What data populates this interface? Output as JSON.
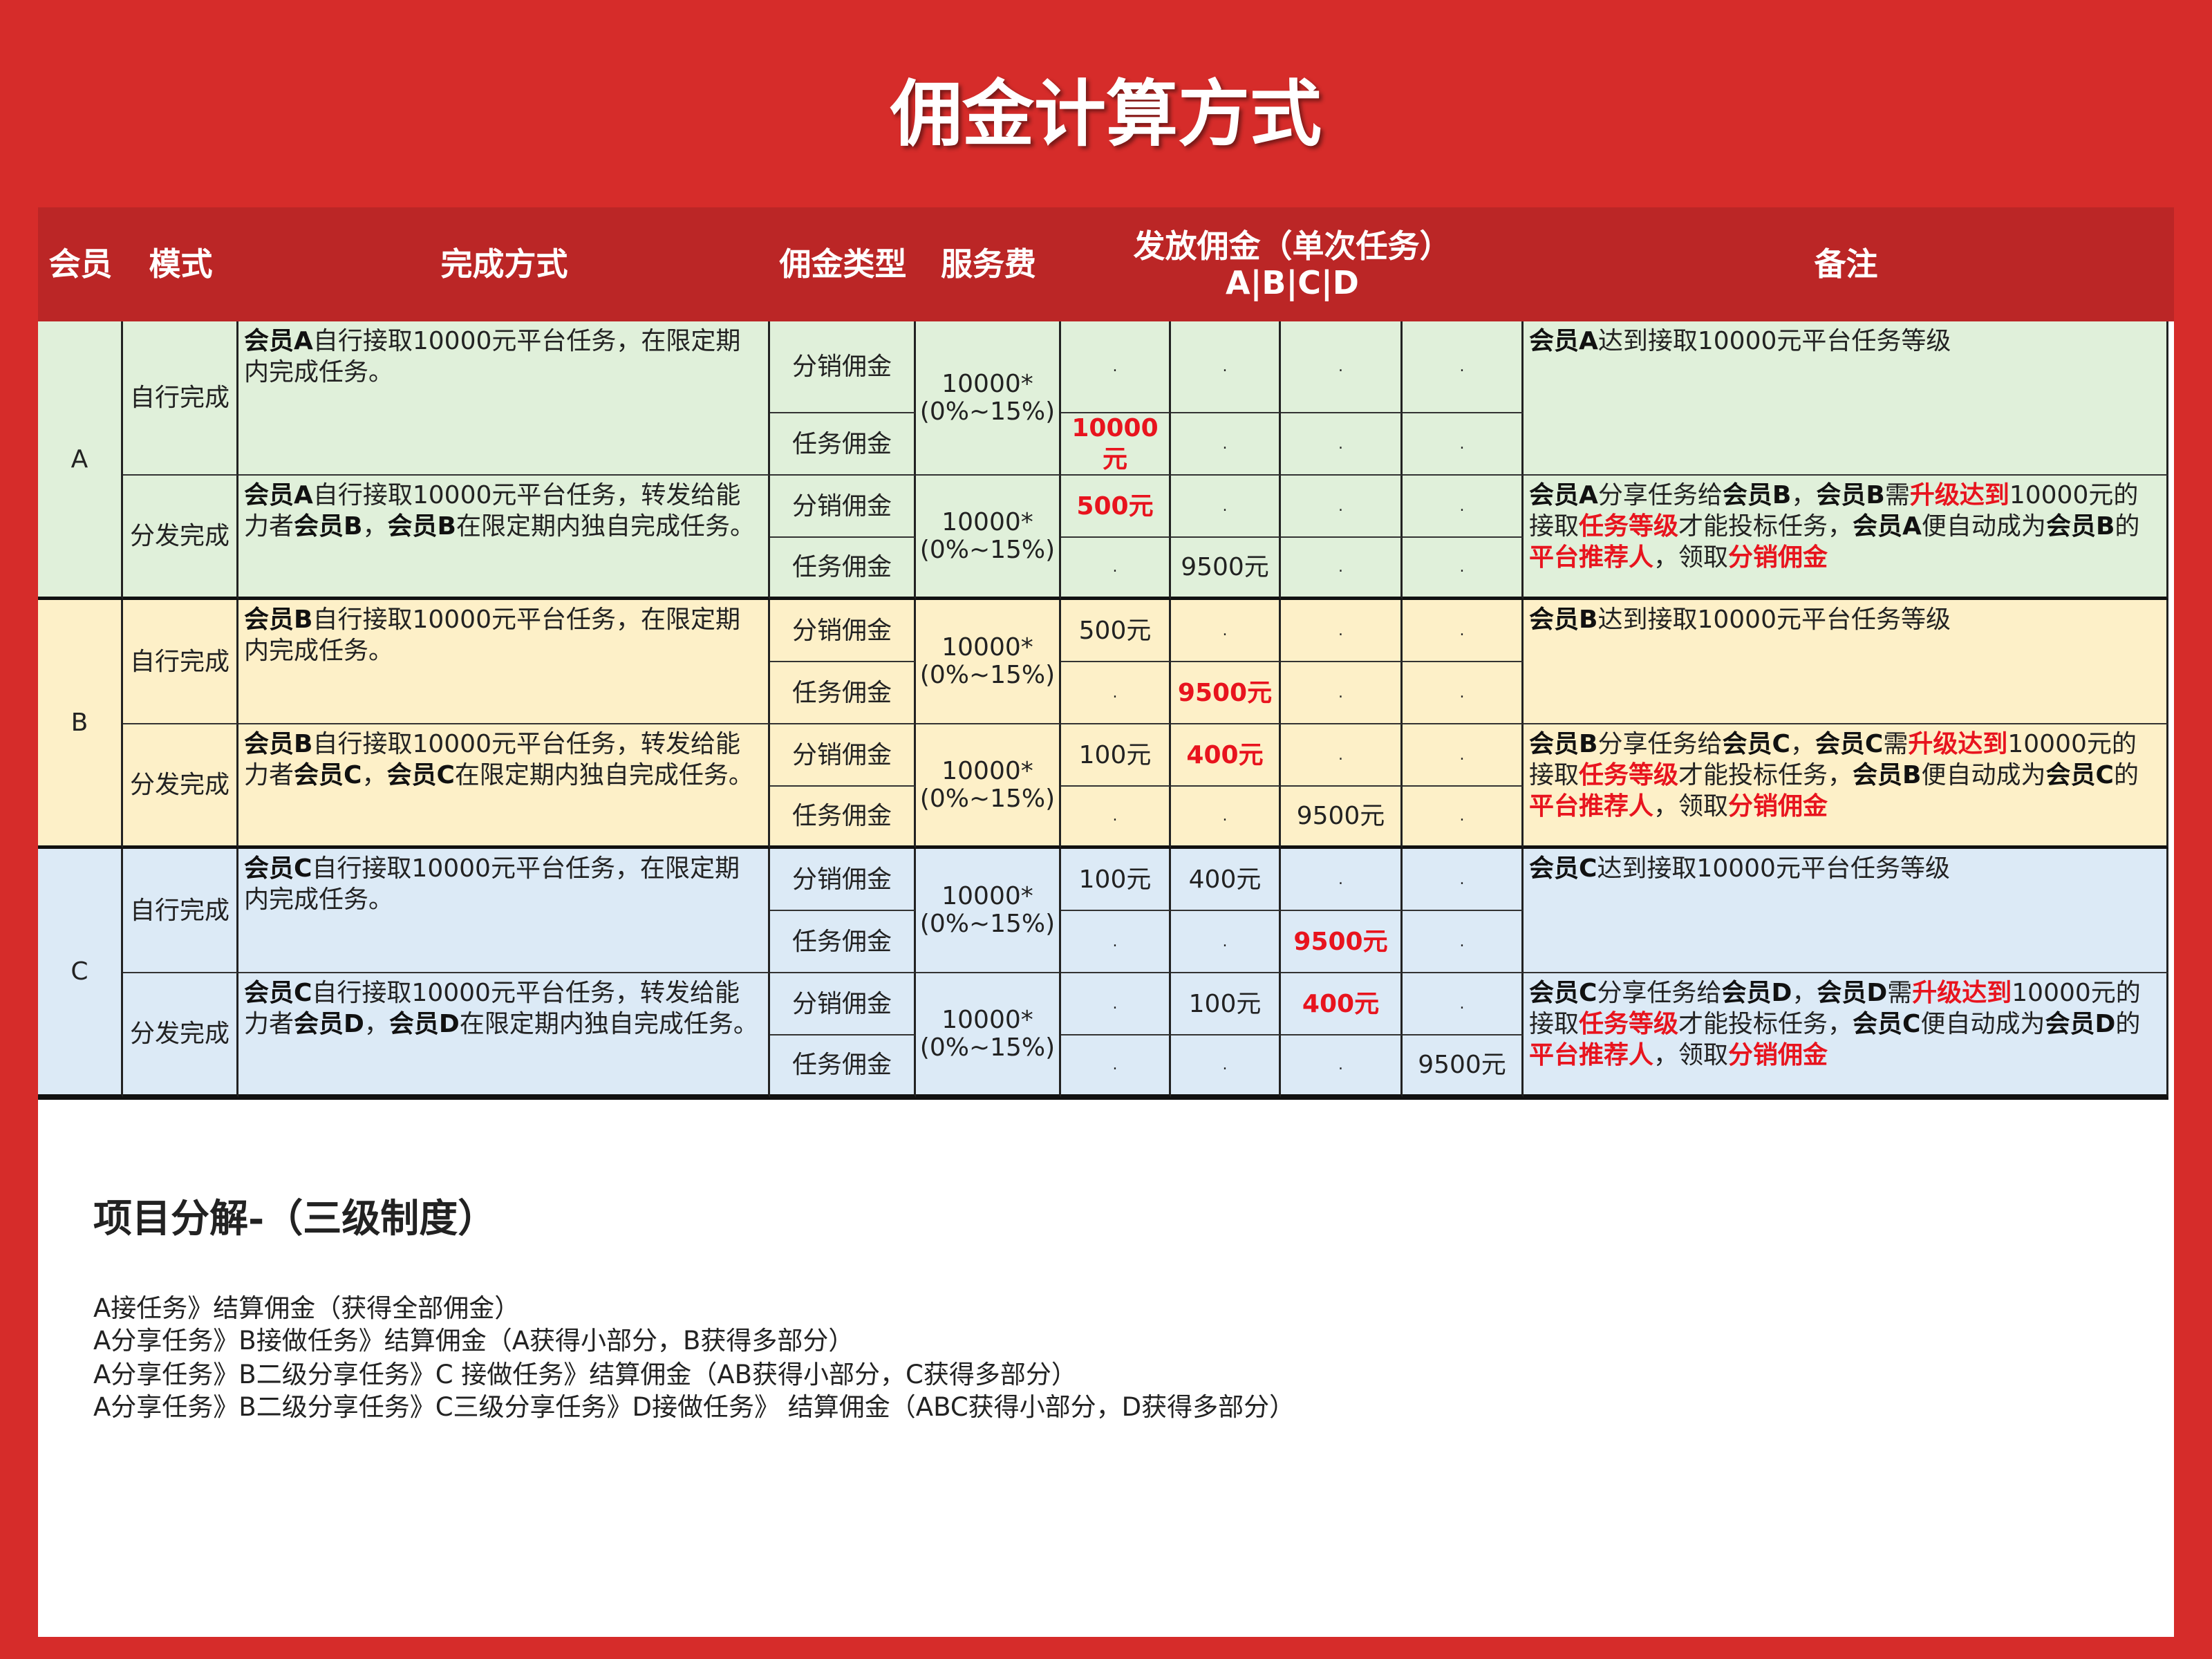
{
  "title": "佣金计算方式",
  "header": {
    "member": "会员",
    "mode": "模式",
    "method": "完成方式",
    "type": "佣金类型",
    "fee": "服务费",
    "payout": "发放佣金（单次任务）",
    "payout_sub": "A|B|C|D",
    "note": "备注"
  },
  "colors": {
    "background": "#d62c2a",
    "header": "#bb2626",
    "highlight": "#e8141e",
    "group_a": "#e0f0da",
    "group_b": "#fdf0c8",
    "group_c": "#dceaf6"
  },
  "groups": [
    {
      "member": "A",
      "bg": "#e0f0da",
      "modes": [
        {
          "mode": "自行完成",
          "fee": [
            "10000*",
            "(0%~15%)"
          ],
          "method": [
            {
              "t": "会员A",
              "b": 1
            },
            {
              "t": "自行接取10000元平台任务，在限定期内完成任务。"
            }
          ],
          "note": [
            {
              "t": "会员A",
              "b": 1
            },
            {
              "t": "达到接取10000元平台任务等级"
            }
          ],
          "rows": [
            {
              "type": "分销佣金",
              "values": [
                {
                  "t": "."
                },
                {
                  "t": "."
                },
                {
                  "t": "."
                },
                {
                  "t": "."
                }
              ]
            },
            {
              "type": "任务佣金",
              "values": [
                {
                  "t": "10000元",
                  "r": 1
                },
                {
                  "t": "."
                },
                {
                  "t": "."
                },
                {
                  "t": "."
                }
              ]
            }
          ]
        },
        {
          "mode": "分发完成",
          "fee": [
            "10000*",
            "(0%~15%)"
          ],
          "method": [
            {
              "t": "会员A",
              "b": 1
            },
            {
              "t": "自行接取10000元平台任务，转发给能力者"
            },
            {
              "t": "会员B",
              "b": 1
            },
            {
              "t": "，"
            },
            {
              "t": "会员B",
              "b": 1
            },
            {
              "t": "在限定期内独自完成任务。"
            }
          ],
          "note": [
            {
              "t": "会员A",
              "b": 1
            },
            {
              "t": "分享任务给"
            },
            {
              "t": "会员B",
              "b": 1
            },
            {
              "t": "，"
            },
            {
              "t": "会员B",
              "b": 1
            },
            {
              "t": "需"
            },
            {
              "t": "升级达到",
              "r": 1
            },
            {
              "t": "10000元的接取"
            },
            {
              "t": "任务等级",
              "r": 1
            },
            {
              "t": "才能投标任务，"
            },
            {
              "t": "会员A",
              "b": 1
            },
            {
              "t": "便自动成为"
            },
            {
              "t": "会员B",
              "b": 1
            },
            {
              "t": "的"
            },
            {
              "t": "平台推荐人",
              "r": 1
            },
            {
              "t": "，领取"
            },
            {
              "t": "分销佣金",
              "r": 1
            }
          ],
          "rows": [
            {
              "type": "分销佣金",
              "values": [
                {
                  "t": "500元",
                  "r": 1
                },
                {
                  "t": "."
                },
                {
                  "t": "."
                },
                {
                  "t": "."
                }
              ]
            },
            {
              "type": "任务佣金",
              "values": [
                {
                  "t": "."
                },
                {
                  "t": "9500元"
                },
                {
                  "t": "."
                },
                {
                  "t": "."
                }
              ]
            }
          ]
        }
      ]
    },
    {
      "member": "B",
      "bg": "#fdf0c8",
      "modes": [
        {
          "mode": "自行完成",
          "fee": [
            "10000*",
            "(0%~15%)"
          ],
          "method": [
            {
              "t": "会员B",
              "b": 1
            },
            {
              "t": "自行接取10000元平台任务，在限定期内完成任务。"
            }
          ],
          "note": [
            {
              "t": "会员B",
              "b": 1
            },
            {
              "t": "达到接取10000元平台任务等级"
            }
          ],
          "rows": [
            {
              "type": "分销佣金",
              "values": [
                {
                  "t": "500元"
                },
                {
                  "t": "."
                },
                {
                  "t": "."
                },
                {
                  "t": "."
                }
              ]
            },
            {
              "type": "任务佣金",
              "values": [
                {
                  "t": "."
                },
                {
                  "t": "9500元",
                  "r": 1
                },
                {
                  "t": "."
                },
                {
                  "t": "."
                }
              ]
            }
          ]
        },
        {
          "mode": "分发完成",
          "fee": [
            "10000*",
            "(0%~15%)"
          ],
          "method": [
            {
              "t": "会员B",
              "b": 1
            },
            {
              "t": "自行接取10000元平台任务，转发给能力者"
            },
            {
              "t": "会员C",
              "b": 1
            },
            {
              "t": "，"
            },
            {
              "t": "会员C",
              "b": 1
            },
            {
              "t": "在限定期内独自完成任务。"
            }
          ],
          "note": [
            {
              "t": "会员B",
              "b": 1
            },
            {
              "t": "分享任务给"
            },
            {
              "t": "会员C",
              "b": 1
            },
            {
              "t": "，"
            },
            {
              "t": "会员C",
              "b": 1
            },
            {
              "t": "需"
            },
            {
              "t": "升级达到",
              "r": 1
            },
            {
              "t": "10000元的接取"
            },
            {
              "t": "任务等级",
              "r": 1
            },
            {
              "t": "才能投标任务，"
            },
            {
              "t": "会员B",
              "b": 1
            },
            {
              "t": "便自动成为"
            },
            {
              "t": "会员C",
              "b": 1
            },
            {
              "t": "的"
            },
            {
              "t": "平台推荐人",
              "r": 1
            },
            {
              "t": "，领取"
            },
            {
              "t": "分销佣金",
              "r": 1
            }
          ],
          "rows": [
            {
              "type": "分销佣金",
              "values": [
                {
                  "t": "100元"
                },
                {
                  "t": "400元",
                  "r": 1
                },
                {
                  "t": "."
                },
                {
                  "t": "."
                }
              ]
            },
            {
              "type": "任务佣金",
              "values": [
                {
                  "t": "."
                },
                {
                  "t": "."
                },
                {
                  "t": "9500元"
                },
                {
                  "t": "."
                }
              ]
            }
          ]
        }
      ]
    },
    {
      "member": "C",
      "bg": "#dceaf6",
      "modes": [
        {
          "mode": "自行完成",
          "fee": [
            "10000*",
            "(0%~15%)"
          ],
          "method": [
            {
              "t": "会员C",
              "b": 1
            },
            {
              "t": "自行接取10000元平台任务，在限定期内完成任务。"
            }
          ],
          "note": [
            {
              "t": "会员C",
              "b": 1
            },
            {
              "t": "达到接取10000元平台任务等级"
            }
          ],
          "rows": [
            {
              "type": "分销佣金",
              "values": [
                {
                  "t": "100元"
                },
                {
                  "t": "400元"
                },
                {
                  "t": "."
                },
                {
                  "t": "."
                }
              ]
            },
            {
              "type": "任务佣金",
              "values": [
                {
                  "t": "."
                },
                {
                  "t": "."
                },
                {
                  "t": "9500元",
                  "r": 1
                },
                {
                  "t": "."
                }
              ]
            }
          ]
        },
        {
          "mode": "分发完成",
          "fee": [
            "10000*",
            "(0%~15%)"
          ],
          "method": [
            {
              "t": "会员C",
              "b": 1
            },
            {
              "t": "自行接取10000元平台任务，转发给能力者"
            },
            {
              "t": "会员D",
              "b": 1
            },
            {
              "t": "，"
            },
            {
              "t": "会员D",
              "b": 1
            },
            {
              "t": "在限定期内独自完成任务。"
            }
          ],
          "note": [
            {
              "t": "会员C",
              "b": 1
            },
            {
              "t": "分享任务给"
            },
            {
              "t": "会员D",
              "b": 1
            },
            {
              "t": "，"
            },
            {
              "t": "会员D",
              "b": 1
            },
            {
              "t": "需"
            },
            {
              "t": "升级达到",
              "r": 1
            },
            {
              "t": "10000元的接取"
            },
            {
              "t": "任务等级",
              "r": 1
            },
            {
              "t": "才能投标任务，"
            },
            {
              "t": "会员C",
              "b": 1
            },
            {
              "t": "便自动成为"
            },
            {
              "t": "会员D",
              "b": 1
            },
            {
              "t": "的"
            },
            {
              "t": "平台推荐人",
              "r": 1
            },
            {
              "t": "，领取"
            },
            {
              "t": "分销佣金",
              "r": 1
            }
          ],
          "rows": [
            {
              "type": "分销佣金",
              "values": [
                {
                  "t": "."
                },
                {
                  "t": "100元"
                },
                {
                  "t": "400元",
                  "r": 1
                },
                {
                  "t": "."
                }
              ]
            },
            {
              "type": "任务佣金",
              "values": [
                {
                  "t": "."
                },
                {
                  "t": "."
                },
                {
                  "t": "."
                },
                {
                  "t": "9500元"
                }
              ]
            }
          ]
        }
      ]
    }
  ],
  "breakdown": {
    "heading": "项目分解-（三级制度）",
    "lines": [
      "A接任务》结算佣金（获得全部佣金）",
      "A分享任务》B接做任务》结算佣金（A获得小部分，B获得多部分）",
      "A分享任务》B二级分享任务》C 接做任务》结算佣金（AB获得小部分，C获得多部分）",
      "A分享任务》B二级分享任务》C三级分享任务》D接做任务》 结算佣金（ABC获得小部分，D获得多部分）"
    ]
  }
}
